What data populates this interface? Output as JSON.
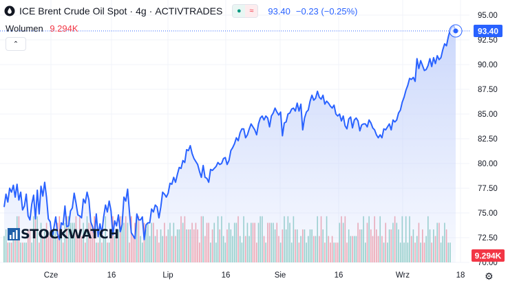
{
  "header": {
    "symbol": "ICE Brent Crude Oil Spot",
    "interval": "4g",
    "exchange": "ACTIVTRADES",
    "last_price": "93.40",
    "change": "−0.23 (−0.25%)",
    "pill_left_glyph": "●",
    "pill_right_glyph": "≈"
  },
  "volume_legend": {
    "label": "Wolumen",
    "value": "9.294K"
  },
  "collapse_glyph": "⌃",
  "watermark": {
    "text": "STOCKWATCH"
  },
  "settings_glyph": "⚙",
  "colors": {
    "line": "#2962ff",
    "area_top": "#c9d6fb",
    "volume_up": "#76c3b6",
    "volume_down": "#f08b95",
    "price_label_bg": "#2962ff",
    "volume_label_bg": "#f23645",
    "grid": "#f0f3fa",
    "axis_text": "#131722"
  },
  "chart_data": {
    "type": "area",
    "ylim": [
      70.0,
      95.0
    ],
    "y_ticks": [
      "95.00",
      "92.50",
      "90.00",
      "87.50",
      "85.00",
      "82.50",
      "80.00",
      "77.50",
      "75.00",
      "72.50",
      "70.00"
    ],
    "x_labels": [
      "Cze",
      "16",
      "Lip",
      "16",
      "Sie",
      "16",
      "Wrz",
      "18"
    ],
    "last_price_label": "93.40",
    "last_price": 93.4,
    "volume_label": "9.294K",
    "series": [
      {
        "values": [
          75.6,
          76.9,
          76.1,
          77.5,
          77.1,
          77.8,
          76.6,
          77.9,
          76.3,
          77.1,
          75.3,
          75.7,
          76.9,
          74.7,
          74.3,
          75.9,
          76.8,
          74.4,
          77.3,
          74.9,
          77.7,
          76.7,
          78.1,
          76.6,
          74.4,
          74.1,
          72.5,
          73.5,
          74.6,
          72.9,
          72.3,
          74.0,
          73.8,
          75.7,
          73.6,
          73.7,
          75.2,
          75.5,
          77.0,
          76.0,
          74.8,
          74.7,
          74.5,
          76.4,
          76.0,
          77.1,
          76.3,
          74.1,
          73.6,
          72.8,
          74.9,
          72.6,
          73.9,
          72.9,
          74.6,
          75.8,
          75.1,
          76.2,
          75.2,
          72.8,
          74.2,
          73.7,
          74.8,
          73.1,
          73.8,
          76.6,
          76.2,
          77.4,
          75.1,
          73.0,
          72.7,
          72.4,
          74.9,
          74.3,
          74.3,
          74.6,
          72.3,
          73.8,
          74.0,
          74.0,
          75.4,
          75.1,
          75.8,
          75.6,
          74.5,
          75.6,
          77.1,
          76.9,
          76.6,
          77.0,
          78.0,
          77.9,
          78.6,
          78.1,
          78.9,
          79.6,
          79.5,
          80.3,
          80.1,
          81.4,
          81.3,
          81.8,
          81.0,
          80.5,
          80.2,
          79.9,
          79.2,
          78.6,
          79.8,
          78.6,
          78.5,
          78.1,
          79.4,
          79.3,
          79.5,
          79.7,
          80.1,
          79.9,
          80.0,
          80.5,
          80.6,
          79.9,
          80.3,
          81.3,
          81.6,
          82.0,
          82.6,
          82.3,
          83.1,
          83.5,
          83.5,
          82.6,
          82.9,
          83.5,
          84.0,
          83.7,
          83.4,
          82.9,
          84.0,
          84.6,
          84.8,
          84.4,
          84.8,
          84.6,
          83.7,
          84.8,
          85.1,
          85.6,
          85.2,
          84.9,
          85.2,
          82.8,
          84.1,
          84.2,
          85.0,
          85.1,
          85.5,
          85.6,
          85.3,
          86.1,
          85.3,
          86.0,
          83.4,
          84.6,
          85.2,
          85.4,
          86.3,
          86.9,
          86.4,
          86.6,
          87.3,
          86.7,
          86.5,
          86.9,
          86.0,
          86.3,
          86.1,
          85.8,
          85.6,
          85.9,
          85.0,
          84.8,
          85.0,
          84.3,
          84.8,
          83.8,
          83.5,
          84.5,
          84.7,
          83.6,
          84.4,
          84.6,
          84.3,
          83.3,
          83.9,
          84.0,
          84.0,
          83.7,
          84.4,
          84.1,
          83.6,
          83.4,
          82.9,
          82.6,
          82.9,
          82.6,
          83.5,
          83.4,
          83.7,
          84.0,
          83.4,
          84.4,
          84.2,
          84.4,
          85.1,
          85.4,
          86.2,
          86.7,
          87.4,
          87.9,
          88.6,
          88.5,
          88.7,
          88.3,
          90.6,
          89.6,
          90.4,
          89.9,
          89.4,
          89.5,
          89.9,
          90.6,
          89.8,
          90.7,
          90.1,
          90.9,
          90.5,
          90.7,
          91.5,
          92.1,
          91.9,
          92.8,
          93.5,
          93.8,
          93.9,
          93.4
        ]
      }
    ],
    "volume": {
      "values": [
        0.4,
        0.5,
        0.3,
        0.3,
        0.3,
        0.5,
        0.5,
        0.7,
        0.7,
        0.3,
        0.3,
        0.3,
        0.3,
        0.5,
        0.5,
        0.3,
        0.7,
        0.7,
        0.7,
        0.3,
        0.6,
        0.4,
        0.5,
        0.6,
        0.4,
        0.5,
        0.5,
        0.5,
        0.5,
        0.6,
        0.7,
        0.4,
        0.3,
        0.6,
        0.7,
        0.7,
        0.6,
        0.6,
        0.6,
        0.7,
        0.4,
        0.7,
        0.4,
        0.6,
        0.3,
        0.7,
        0.6,
        0.6,
        0.5,
        0.7,
        0.3,
        0.3,
        0.4,
        0.3,
        0.4,
        0.7,
        0.3,
        0.3,
        0.5,
        0.7,
        0.4,
        0.4,
        0.5,
        0.7,
        0.7,
        0.6,
        0.7,
        0.6,
        0.3,
        0.7,
        0.4,
        0.6,
        0.7,
        0.7,
        0.4,
        0.3,
        0.6,
        0.5,
        0.6,
        0.4,
        0.6,
        0.6,
        0.4,
        0.5,
        0.3,
        0.5,
        0.4,
        0.6,
        0.4,
        0.5,
        0.6,
        0.4,
        0.6,
        0.4,
        0.5,
        0.5,
        0.7,
        0.6,
        0.7,
        0.5,
        0.5,
        0.5,
        0.6,
        0.5,
        0.6,
        0.5,
        0.3,
        0.7,
        0.7,
        0.4,
        0.6,
        0.6,
        0.3,
        0.5,
        0.6,
        0.3,
        0.7,
        0.5,
        0.7,
        0.4,
        0.3,
        0.5,
        0.6,
        0.5,
        0.4,
        0.6,
        0.6,
        0.7,
        0.4,
        0.3,
        0.7,
        0.4,
        0.6,
        0.4,
        0.6,
        0.6,
        0.6,
        0.3,
        0.6,
        0.7,
        0.7,
        0.4,
        0.3,
        0.6,
        0.6,
        0.6,
        0.6,
        0.5,
        0.6,
        0.4,
        0.3,
        0.5,
        0.7,
        0.5,
        0.7,
        0.6,
        0.3,
        0.7,
        0.5,
        0.5,
        0.3,
        0.4,
        0.5,
        0.5,
        0.3,
        0.4,
        0.5,
        0.5,
        0.4,
        0.4,
        0.7,
        0.4,
        0.7,
        0.5,
        0.3,
        0.7,
        0.4,
        0.3,
        0.4,
        0.3,
        0.3,
        0.3,
        0.6,
        0.7,
        0.6,
        0.7,
        0.3,
        0.5,
        0.4,
        0.4,
        0.4,
        0.4,
        0.6,
        0.5,
        0.5,
        0.7,
        0.3,
        0.6,
        0.7,
        0.5,
        0.4,
        0.7,
        0.5,
        0.4,
        0.7,
        0.4,
        0.3,
        0.6,
        0.3,
        0.5,
        0.5,
        0.6,
        0.7,
        0.6,
        0.5,
        0.3,
        0.7,
        0.3,
        0.7,
        0.3,
        0.7,
        0.4,
        0.5,
        0.3,
        0.4,
        0.6,
        0.3,
        0.5,
        0.3,
        0.4,
        0.7,
        0.5,
        0.3,
        0.5,
        0.4,
        0.6,
        0.6,
        0.3,
        0.4,
        0.6,
        0.5,
        0.3,
        0.3
      ]
    }
  }
}
